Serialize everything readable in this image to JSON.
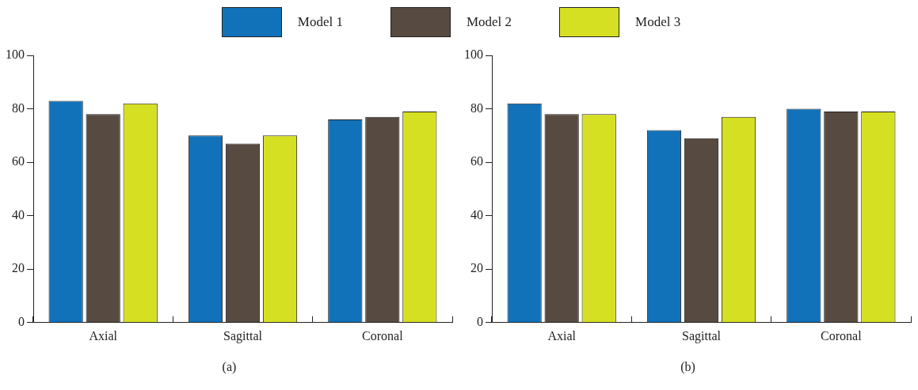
{
  "chart_data": [
    {
      "type": "bar",
      "categories": [
        "Axial",
        "Sagittal",
        "Coronal"
      ],
      "series": [
        {
          "name": "Model 1",
          "color": "#1172ba",
          "values": [
            83,
            70,
            76
          ]
        },
        {
          "name": "Model 2",
          "color": "#574a41",
          "values": [
            78,
            67,
            77
          ]
        },
        {
          "name": "Model 3",
          "color": "#d6e022",
          "values": [
            82,
            70,
            79
          ]
        }
      ],
      "ylim": [
        0,
        100
      ],
      "yticks": [
        0,
        20,
        40,
        60,
        80,
        100
      ],
      "grid": false,
      "legend": "top",
      "annotations": [
        "(a)"
      ]
    },
    {
      "type": "bar",
      "categories": [
        "Axial",
        "Sagittal",
        "Coronal"
      ],
      "series": [
        {
          "color": "#1172ba",
          "values": [
            82,
            72,
            80
          ]
        },
        {
          "color": "#574a41",
          "values": [
            78,
            69,
            79
          ]
        },
        {
          "color": "#d6e022",
          "values": [
            78,
            77,
            79
          ]
        }
      ],
      "ylim": [
        0,
        100
      ],
      "yticks": [
        0,
        20,
        40,
        60,
        80,
        100
      ],
      "grid": false,
      "annotations": [
        "(b)"
      ]
    }
  ]
}
